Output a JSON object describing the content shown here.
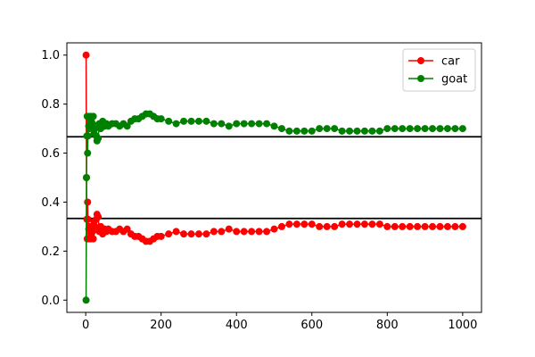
{
  "chart_data": {
    "type": "line",
    "title": "",
    "xlabel": "",
    "ylabel": "",
    "xlim": [
      -50,
      1050
    ],
    "ylim": [
      -0.05,
      1.05
    ],
    "x_ticks": [
      0,
      200,
      400,
      600,
      800,
      1000
    ],
    "x_tick_labels": [
      "0",
      "200",
      "400",
      "600",
      "800",
      "1000"
    ],
    "y_ticks": [
      0.0,
      0.2,
      0.4,
      0.6,
      0.8,
      1.0
    ],
    "y_tick_labels": [
      "0.0",
      "0.2",
      "0.4",
      "0.6",
      "0.8",
      "1.0"
    ],
    "grid": false,
    "legend_position": "top-right",
    "reference_lines": [
      {
        "y": 0.3333,
        "color": "#000000"
      },
      {
        "y": 0.6667,
        "color": "#000000"
      }
    ],
    "series": [
      {
        "name": "car",
        "color": "#ff0000",
        "marker": "circle",
        "x": [
          1,
          2,
          3,
          4,
          5,
          6,
          8,
          10,
          12,
          15,
          18,
          20,
          22,
          25,
          28,
          30,
          33,
          36,
          40,
          45,
          50,
          55,
          60,
          70,
          80,
          90,
          100,
          110,
          120,
          130,
          140,
          150,
          160,
          170,
          180,
          190,
          200,
          220,
          240,
          260,
          280,
          300,
          320,
          340,
          360,
          380,
          400,
          420,
          440,
          460,
          480,
          500,
          520,
          540,
          560,
          580,
          600,
          620,
          640,
          660,
          680,
          700,
          720,
          740,
          760,
          780,
          800,
          820,
          840,
          860,
          880,
          900,
          920,
          940,
          960,
          980,
          1000
        ],
        "values": [
          1.0,
          0.5,
          0.33,
          0.25,
          0.4,
          0.33,
          0.29,
          0.3,
          0.25,
          0.27,
          0.28,
          0.25,
          0.32,
          0.3,
          0.33,
          0.35,
          0.34,
          0.28,
          0.3,
          0.27,
          0.29,
          0.28,
          0.29,
          0.28,
          0.28,
          0.29,
          0.28,
          0.29,
          0.27,
          0.26,
          0.26,
          0.25,
          0.24,
          0.24,
          0.25,
          0.26,
          0.26,
          0.27,
          0.28,
          0.27,
          0.27,
          0.27,
          0.27,
          0.28,
          0.28,
          0.29,
          0.28,
          0.28,
          0.28,
          0.28,
          0.28,
          0.29,
          0.3,
          0.31,
          0.31,
          0.31,
          0.31,
          0.3,
          0.3,
          0.3,
          0.31,
          0.31,
          0.31,
          0.31,
          0.31,
          0.31,
          0.3,
          0.3,
          0.3,
          0.3,
          0.3,
          0.3,
          0.3,
          0.3,
          0.3,
          0.3,
          0.3
        ]
      },
      {
        "name": "goat",
        "color": "#008000",
        "marker": "circle",
        "x": [
          1,
          2,
          3,
          4,
          5,
          6,
          8,
          10,
          12,
          15,
          18,
          20,
          22,
          25,
          28,
          30,
          33,
          36,
          40,
          45,
          50,
          55,
          60,
          70,
          80,
          90,
          100,
          110,
          120,
          130,
          140,
          150,
          160,
          170,
          180,
          190,
          200,
          220,
          240,
          260,
          280,
          300,
          320,
          340,
          360,
          380,
          400,
          420,
          440,
          460,
          480,
          500,
          520,
          540,
          560,
          580,
          600,
          620,
          640,
          660,
          680,
          700,
          720,
          740,
          760,
          780,
          800,
          820,
          840,
          860,
          880,
          900,
          920,
          940,
          960,
          980,
          1000
        ],
        "values": [
          0.0,
          0.5,
          0.67,
          0.75,
          0.6,
          0.67,
          0.71,
          0.7,
          0.75,
          0.73,
          0.72,
          0.75,
          0.68,
          0.7,
          0.67,
          0.65,
          0.66,
          0.72,
          0.7,
          0.73,
          0.71,
          0.72,
          0.71,
          0.72,
          0.72,
          0.71,
          0.72,
          0.71,
          0.73,
          0.74,
          0.74,
          0.75,
          0.76,
          0.76,
          0.75,
          0.74,
          0.74,
          0.73,
          0.72,
          0.73,
          0.73,
          0.73,
          0.73,
          0.72,
          0.72,
          0.71,
          0.72,
          0.72,
          0.72,
          0.72,
          0.72,
          0.71,
          0.7,
          0.69,
          0.69,
          0.69,
          0.69,
          0.7,
          0.7,
          0.7,
          0.69,
          0.69,
          0.69,
          0.69,
          0.69,
          0.69,
          0.7,
          0.7,
          0.7,
          0.7,
          0.7,
          0.7,
          0.7,
          0.7,
          0.7,
          0.7,
          0.7
        ]
      }
    ]
  }
}
